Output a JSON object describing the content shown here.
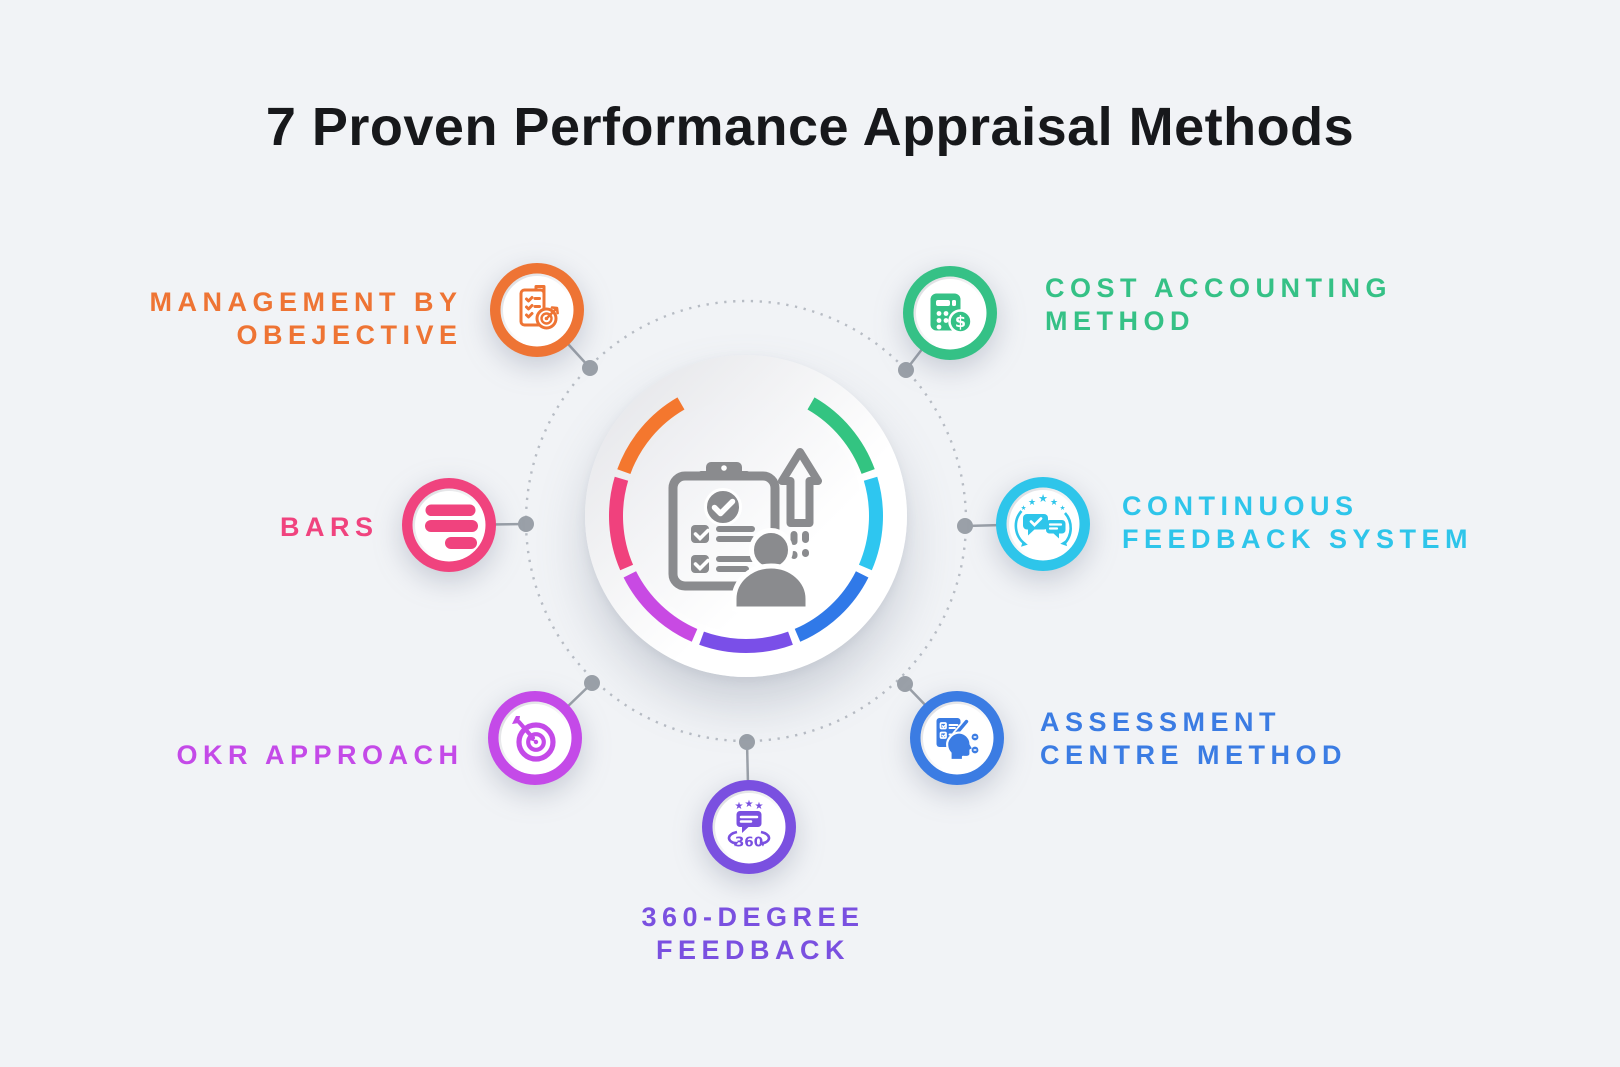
{
  "title": "7 Proven Performance Appraisal Methods",
  "colors": {
    "background": "#f1f3f6",
    "title": "#17181b",
    "connector": "#9aa0a8",
    "dotted_circle": "#b7bcc4",
    "center_icon": "#8a8b8e"
  },
  "center_ring": {
    "segments": [
      "#33c481",
      "#2ec6f0",
      "#3079e8",
      "#7a4fe8",
      "#c84ae3",
      "#f0417d",
      "#f4772e"
    ]
  },
  "nodes": [
    {
      "id": "management-by-objective",
      "label_lines": [
        "MANAGEMENT BY",
        "OBEJECTIVE"
      ],
      "color": "#ee7434",
      "icon": "clipboard-target-icon"
    },
    {
      "id": "cost-accounting-method",
      "label_lines": [
        "COST ACCOUNTING",
        "METHOD"
      ],
      "color": "#35c186",
      "icon": "calculator-dollar-icon",
      "badge": "$"
    },
    {
      "id": "bars",
      "label_lines": [
        "BARS"
      ],
      "color": "#f0437e",
      "icon": "bars-icon"
    },
    {
      "id": "continuous-feedback-system",
      "label_lines": [
        "CONTINUOUS",
        "FEEDBACK SYSTEM"
      ],
      "color": "#2ec5ea",
      "icon": "feedback-chat-icon"
    },
    {
      "id": "okr-approach",
      "label_lines": [
        "OKR APPROACH"
      ],
      "color": "#c44ae8",
      "icon": "target-dart-icon"
    },
    {
      "id": "assessment-centre-method",
      "label_lines": [
        "ASSESSMENT",
        "CENTRE METHOD"
      ],
      "color": "#3b7ce3",
      "icon": "head-checklist-icon"
    },
    {
      "id": "360-degree-feedback",
      "label_lines": [
        "360-DEGREE",
        "FEEDBACK"
      ],
      "color": "#7a50e0",
      "icon": "feedback-360-icon",
      "badge": "360"
    }
  ]
}
